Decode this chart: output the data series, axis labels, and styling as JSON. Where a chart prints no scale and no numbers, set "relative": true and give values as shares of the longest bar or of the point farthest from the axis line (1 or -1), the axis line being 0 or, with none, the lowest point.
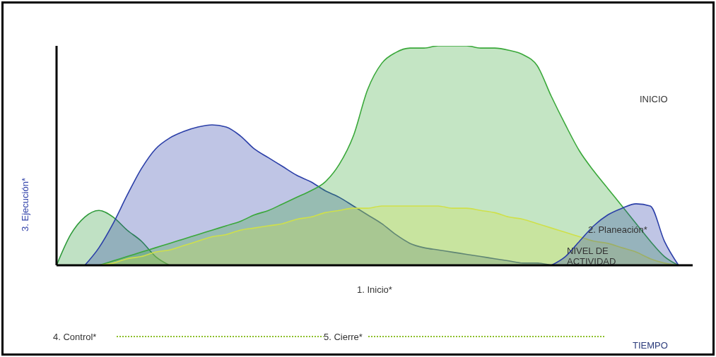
{
  "chart_data": {
    "type": "area",
    "relative": true,
    "ylabel": "3. Ejecución*",
    "annotations": [
      "INICIO",
      "2. Planeación*",
      "NIVEL DE ACTIVIDAD",
      "1. Inicio*",
      "4. Control*",
      "5. Cierre*",
      "TIEMPO"
    ],
    "categories": [
      null,
      null,
      null,
      null,
      null,
      null,
      null,
      null,
      null,
      null,
      null,
      null,
      null,
      null,
      null,
      null,
      null,
      null,
      null,
      null,
      null,
      null,
      null,
      null,
      null,
      null,
      null,
      null,
      null,
      null,
      null,
      null,
      null,
      null,
      null,
      null,
      null,
      null,
      null,
      null,
      null,
      null,
      null,
      null,
      null,
      null
    ],
    "series": [
      {
        "color": "#2e9a3a",
        "values": [
          0,
          0.14,
          0.22,
          0.25,
          0.22,
          0.16,
          0.11,
          0.04,
          0,
          null,
          null,
          null,
          null,
          null,
          null,
          null,
          null,
          null,
          null,
          null,
          null,
          null,
          null,
          null,
          null,
          null,
          null,
          null,
          null,
          null,
          null,
          null,
          null,
          null,
          null,
          null,
          null,
          null,
          null,
          null,
          null,
          null,
          null,
          null,
          null,
          null
        ]
      },
      {
        "color": "#2b3fa8",
        "values": [
          null,
          null,
          0,
          0.08,
          0.19,
          0.32,
          0.44,
          0.53,
          0.58,
          0.61,
          0.63,
          0.64,
          0.63,
          0.59,
          0.53,
          0.49,
          0.45,
          0.41,
          0.38,
          0.34,
          0.31,
          0.27,
          0.23,
          0.19,
          0.14,
          0.1,
          0.08,
          0.07,
          0.06,
          0.05,
          0.04,
          0.03,
          0.02,
          0.01,
          0.01,
          0,
          null,
          null,
          null,
          null,
          null,
          null,
          null,
          null,
          null,
          null
        ]
      },
      {
        "color": "#3aa83a",
        "values": [
          null,
          null,
          null,
          0,
          0.02,
          0.04,
          0.06,
          0.08,
          0.1,
          0.12,
          0.14,
          0.16,
          0.18,
          0.2,
          0.23,
          0.25,
          0.28,
          0.31,
          0.34,
          0.38,
          0.46,
          0.59,
          0.8,
          0.92,
          0.97,
          0.99,
          0.99,
          1,
          1,
          1,
          0.99,
          0.99,
          0.98,
          0.96,
          0.91,
          0.77,
          0.64,
          0.52,
          0.43,
          0.35,
          0.27,
          0.19,
          0.11,
          0.04,
          0,
          null
        ]
      },
      {
        "color": "#cfe04a",
        "values": [
          null,
          null,
          null,
          0,
          0.01,
          0.03,
          0.04,
          0.06,
          0.07,
          0.09,
          0.11,
          0.13,
          0.14,
          0.16,
          0.17,
          0.18,
          0.19,
          0.21,
          0.22,
          0.24,
          0.25,
          0.26,
          0.26,
          0.27,
          0.27,
          0.27,
          0.27,
          0.27,
          0.26,
          0.26,
          0.25,
          0.24,
          0.22,
          0.21,
          0.19,
          0.17,
          0.15,
          0.13,
          0.11,
          0.1,
          0.08,
          0.06,
          0.03,
          0.01,
          0,
          null
        ]
      },
      {
        "color": "#2b3fa8",
        "values": [
          null,
          null,
          null,
          null,
          null,
          null,
          null,
          null,
          null,
          null,
          null,
          null,
          null,
          null,
          null,
          null,
          null,
          null,
          null,
          null,
          null,
          null,
          null,
          null,
          null,
          null,
          null,
          null,
          null,
          null,
          null,
          null,
          null,
          null,
          null,
          0,
          0.04,
          0.11,
          0.18,
          0.23,
          0.26,
          0.28,
          0.27,
          0.11,
          0,
          null
        ]
      }
    ]
  }
}
